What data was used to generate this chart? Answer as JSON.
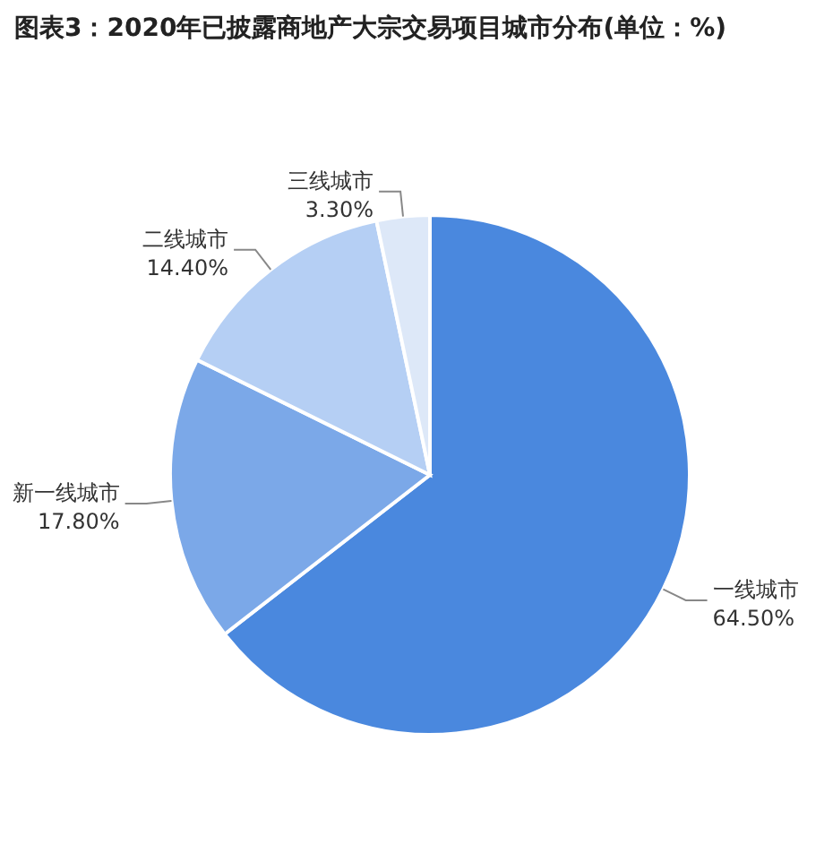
{
  "chart_data": {
    "type": "pie",
    "title": "图表3：2020年已披露商地产大宗交易项目城市分布(单位：%)",
    "categories": [
      "一线城市",
      "新一线城市",
      "二线城市",
      "三线城市"
    ],
    "values": [
      64.5,
      17.8,
      14.4,
      3.3
    ],
    "colors": [
      "#4a88de",
      "#7ba8e8",
      "#b5cff4",
      "#dde8f8"
    ],
    "value_labels": [
      "64.50%",
      "17.80%",
      "14.40%",
      "3.30%"
    ],
    "legend": false
  }
}
